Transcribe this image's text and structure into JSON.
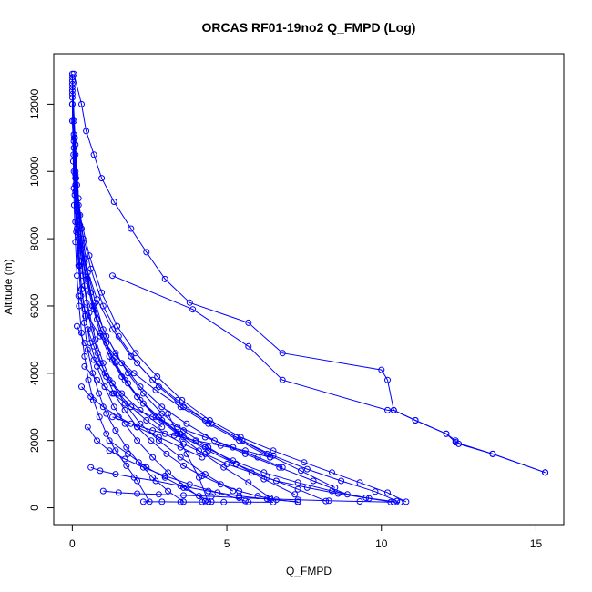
{
  "chart_data": {
    "type": "line",
    "title": "ORCAS RF01-19no2 Q_FMPD (Log)",
    "xlabel": "Q_FMPD",
    "ylabel": "Altitude (m)",
    "xlim": [
      -0.6,
      15.9
    ],
    "ylim": [
      -500,
      13500
    ],
    "xticks": [
      0,
      5,
      10,
      15
    ],
    "yticks": [
      0,
      2000,
      4000,
      6000,
      8000,
      10000,
      12000
    ],
    "grid": false,
    "legend": "none",
    "color": "#0000ff",
    "marker": "open-circle",
    "series": [
      {
        "x": [
          0,
          0.05,
          0.1,
          0.15,
          0.2,
          0.25,
          0.3,
          0.4,
          0.5,
          0.7,
          0.9,
          1.2,
          1.5,
          1.9,
          2.4,
          3.0,
          3.6,
          4.3,
          5.0,
          5.8,
          6.6,
          7.6,
          8.6,
          9.6,
          10.4
        ],
        "y": [
          12900,
          11500,
          10000,
          9000,
          8000,
          7200,
          6500,
          5900,
          5300,
          4800,
          4300,
          3800,
          3400,
          3000,
          2600,
          2200,
          1900,
          1600,
          1300,
          1050,
          800,
          600,
          420,
          280,
          170
        ]
      },
      {
        "x": [
          0,
          0.1,
          0.2,
          0.3,
          0.5,
          0.7,
          1.0,
          1.3,
          1.7,
          2.2,
          2.8,
          3.5,
          4.3,
          5.2,
          6.2,
          7.3,
          8.4,
          9.5,
          10.6
        ],
        "y": [
          12800,
          10500,
          9000,
          7800,
          6800,
          5900,
          5100,
          4400,
          3800,
          3200,
          2700,
          2200,
          1800,
          1400,
          1050,
          750,
          500,
          300,
          160
        ]
      },
      {
        "x": [
          0,
          0.08,
          0.15,
          0.25,
          0.4,
          0.6,
          0.8,
          1.1,
          1.4,
          1.8,
          2.3,
          2.9,
          3.6,
          4.4,
          5.3,
          6.3,
          7.3,
          8.2
        ],
        "y": [
          12600,
          11000,
          9600,
          8400,
          7400,
          6400,
          5600,
          4900,
          4300,
          3700,
          3100,
          2600,
          2100,
          1700,
          1300,
          900,
          550,
          200
        ]
      },
      {
        "x": [
          0,
          0.1,
          0.2,
          0.35,
          0.5,
          0.75,
          1.0,
          1.4,
          1.8,
          2.3,
          2.9,
          3.6,
          4.4,
          5.3,
          6.2,
          7.2
        ],
        "y": [
          12700,
          10800,
          9200,
          8000,
          7000,
          6100,
          5300,
          4600,
          4000,
          3400,
          2800,
          2300,
          1800,
          1300,
          850,
          400
        ]
      },
      {
        "x": [
          0,
          0.06,
          0.12,
          0.2,
          0.3,
          0.45,
          0.65,
          0.9,
          1.2,
          1.6,
          2.1,
          2.7,
          3.4,
          4.1,
          4.9,
          5.7,
          6.4
        ],
        "y": [
          12500,
          11000,
          9800,
          8700,
          7700,
          6800,
          6000,
          5200,
          4500,
          3900,
          3300,
          2700,
          2200,
          1700,
          1200,
          750,
          300
        ]
      },
      {
        "x": [
          0,
          0.05,
          0.1,
          0.18,
          0.28,
          0.4,
          0.55,
          0.75,
          1.0,
          1.3,
          1.7,
          2.2,
          2.8,
          3.5,
          4.3,
          5.2
        ],
        "y": [
          12300,
          10900,
          9600,
          8500,
          7500,
          6600,
          5800,
          5000,
          4300,
          3700,
          3100,
          2500,
          2000,
          1500,
          1000,
          500
        ]
      },
      {
        "x": [
          0,
          0.05,
          0.1,
          0.15,
          0.22,
          0.3,
          0.42,
          0.58,
          0.8,
          1.05,
          1.35,
          1.7,
          2.1,
          2.6,
          3.1,
          3.7,
          4.3
        ],
        "y": [
          12200,
          10700,
          9400,
          8300,
          7300,
          6500,
          5700,
          4900,
          4200,
          3600,
          3000,
          2500,
          2000,
          1500,
          1050,
          600,
          200
        ]
      },
      {
        "x": [
          0,
          0.04,
          0.08,
          0.13,
          0.2,
          0.28,
          0.38,
          0.5,
          0.66,
          0.86,
          1.1,
          1.4,
          1.75,
          2.15,
          2.6,
          3.1,
          3.6
        ],
        "y": [
          12000,
          10500,
          9300,
          8200,
          7200,
          6300,
          5500,
          4700,
          4000,
          3400,
          2800,
          2300,
          1800,
          1350,
          900,
          500,
          180
        ]
      },
      {
        "x": [
          0,
          0.05,
          0.1,
          0.16,
          0.24,
          0.34,
          0.46,
          0.62,
          0.82,
          1.05,
          1.35,
          1.7,
          2.1,
          2.55,
          3.05,
          3.6,
          4.2,
          4.8,
          5.4,
          6.0,
          6.6,
          7.3
        ],
        "y": [
          12400,
          11100,
          9900,
          8800,
          7800,
          6900,
          6100,
          5300,
          4600,
          4000,
          3400,
          2900,
          2400,
          2000,
          1600,
          1250,
          950,
          700,
          500,
          350,
          240,
          170
        ]
      },
      {
        "x": [
          0,
          0.03,
          0.06,
          0.1,
          0.15,
          0.22,
          0.3,
          0.4,
          0.52,
          0.68,
          0.88,
          1.1,
          1.4,
          1.75,
          2.1,
          2.5
        ],
        "y": [
          12000,
          10300,
          9000,
          7900,
          6900,
          6000,
          5200,
          4500,
          3800,
          3200,
          2700,
          2200,
          1700,
          1250,
          800,
          180
        ]
      },
      {
        "x": [
          0,
          0.1,
          0.3,
          0.6,
          1.0,
          1.5,
          2.1,
          2.8,
          3.6,
          4.5,
          5.5,
          6.5,
          7.6,
          8.7,
          9.8,
          10.5
        ],
        "y": [
          11500,
          9800,
          8300,
          7100,
          6000,
          5100,
          4300,
          3600,
          3000,
          2500,
          2000,
          1550,
          1150,
          800,
          480,
          200
        ]
      },
      {
        "x": [
          0.05,
          0.2,
          0.4,
          0.7,
          1.1,
          1.6,
          2.2,
          2.9,
          3.7,
          4.6,
          5.6,
          6.7,
          7.8,
          8.9
        ],
        "y": [
          9500,
          8200,
          7000,
          6000,
          5100,
          4300,
          3600,
          3000,
          2500,
          2000,
          1600,
          1200,
          800,
          400
        ]
      },
      {
        "x": [
          0.1,
          0.4,
          0.8,
          1.3,
          1.9,
          2.6,
          3.4,
          4.3,
          5.3,
          6.3,
          7.4,
          8.5
        ],
        "y": [
          8500,
          7300,
          6200,
          5300,
          4500,
          3800,
          3200,
          2600,
          2100,
          1600,
          1100,
          600
        ]
      },
      {
        "x": [
          0.05,
          0.25,
          0.55,
          0.95,
          1.45,
          2.05,
          2.75,
          3.55,
          4.45,
          5.45,
          6.5,
          7.5,
          8.4,
          9.3,
          10.2,
          10.8
        ],
        "y": [
          10000,
          8700,
          7500,
          6400,
          5400,
          4600,
          3900,
          3200,
          2600,
          2100,
          1700,
          1350,
          1050,
          750,
          450,
          180
        ]
      },
      {
        "x": [
          0.5,
          0.8,
          1.2,
          1.7,
          2.3,
          3.0,
          3.8,
          4.7,
          5.6
        ],
        "y": [
          2400,
          2000,
          1700,
          1450,
          1200,
          950,
          700,
          450,
          200
        ]
      },
      {
        "x": [
          0.6,
          0.9,
          1.4,
          2.0,
          2.7,
          3.5,
          4.4,
          5.4,
          6.4,
          7.3
        ],
        "y": [
          1200,
          1100,
          1000,
          900,
          800,
          650,
          500,
          350,
          250,
          180
        ]
      },
      {
        "x": [
          1.0,
          1.5,
          2.1,
          2.8,
          3.6,
          4.5,
          5.4,
          6.3,
          7.3,
          8.3,
          9.3,
          10.3
        ],
        "y": [
          500,
          450,
          420,
          400,
          370,
          340,
          300,
          270,
          240,
          210,
          190,
          170
        ]
      },
      {
        "x": [
          2.3,
          2.9,
          3.5,
          4.2,
          4.9,
          5.7,
          6.5
        ],
        "y": [
          180,
          180,
          175,
          175,
          170,
          170,
          165
        ]
      },
      {
        "x": [
          0.3,
          0.6,
          1.0,
          1.5,
          2.1,
          2.8,
          3.5,
          4.2
        ],
        "y": [
          3600,
          3300,
          3000,
          2700,
          2400,
          2100,
          1800,
          1500
        ]
      },
      {
        "x": [
          0.4,
          0.8,
          1.3,
          1.9,
          2.6,
          3.4,
          4.3,
          5.2,
          6.0,
          6.8
        ],
        "y": [
          4200,
          3800,
          3400,
          3000,
          2700,
          2400,
          2100,
          1800,
          1500,
          1200
        ]
      },
      {
        "x": [
          1.3,
          1.9,
          2.6,
          3.3,
          4.0,
          4.8,
          5.6,
          6.4
        ],
        "y": [
          2700,
          2500,
          2300,
          2150,
          2000,
          1850,
          1700,
          1500
        ]
      },
      {
        "x": [
          0.2,
          0.5,
          0.9,
          1.4,
          2.0,
          2.7,
          3.5,
          4.4,
          5.4,
          6.4
        ],
        "y": [
          6300,
          5700,
          5100,
          4500,
          4000,
          3500,
          3000,
          2500,
          2000,
          1500
        ]
      },
      {
        "x": [
          1.2,
          1.8,
          2.4,
          3.0,
          3.6,
          4.1,
          4.5
        ],
        "y": [
          2000,
          1600,
          1200,
          900,
          600,
          350,
          180
        ]
      },
      {
        "x": [
          3.1,
          3.4,
          3.7,
          4.1,
          4.4
        ],
        "y": [
          2800,
          2200,
          1600,
          900,
          180
        ]
      },
      {
        "x": [
          0.15,
          0.4,
          0.7,
          1.1,
          1.6,
          2.2,
          2.9
        ],
        "y": [
          5400,
          4900,
          4400,
          3900,
          3400,
          2900,
          2400
        ]
      },
      {
        "x": [
          0.05,
          0.3,
          0.45,
          0.7,
          0.95,
          1.35,
          1.9,
          2.4,
          3.0,
          3.8,
          5.7,
          6.8,
          10.0,
          10.2,
          10.4,
          11.1,
          12.1,
          12.4,
          12.5,
          13.6,
          15.3
        ],
        "y": [
          12900,
          12000,
          11200,
          10500,
          9800,
          9100,
          8300,
          7600,
          6800,
          6100,
          5500,
          4600,
          4100,
          3800,
          2900,
          2600,
          2200,
          2000,
          1900,
          1600,
          1050
        ]
      },
      {
        "x": [
          1.3,
          3.9,
          5.7,
          6.8,
          10.2,
          10.4,
          11.1,
          12.1,
          12.4,
          13.6,
          15.3
        ],
        "y": [
          6900,
          5900,
          4800,
          3800,
          2900,
          2900,
          2600,
          2200,
          1950,
          1600,
          1050
        ]
      }
    ]
  }
}
